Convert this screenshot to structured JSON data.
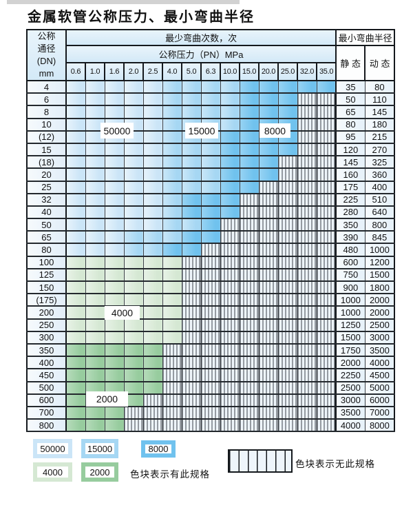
{
  "title": "金属软管公称压力、最小弯曲半径",
  "colors": {
    "c1": "#cbe5f7",
    "c2": "#a6d7f3",
    "c3": "#70c2ee",
    "c4": "#d5e8d3",
    "c5": "#97cc9e",
    "hatch_bg": "#eef5fb",
    "grid": "#3b4046"
  },
  "table": {
    "corner": [
      "公称",
      "通径",
      "(DN)",
      "mm"
    ],
    "cycles_header": "最少弯曲次数，次",
    "pressure_header": "公称压力（PN）MPa",
    "radius_header": "最小弯曲半径",
    "static_label": "静 态",
    "dynamic_label": "动 态"
  },
  "chart_data": {
    "type": "table",
    "title": "金属软管公称压力、最小弯曲半径",
    "columns_unit": "公称压力（PN）MPa",
    "columns": [
      "0.6",
      "1.0",
      "1.6",
      "2.0",
      "2.5",
      "4.0",
      "5.0",
      "6.3",
      "10.0",
      "15.0",
      "20.0",
      "25.0",
      "32.0",
      "35.0"
    ],
    "zone_key": {
      "0": "无此规格（斜线网格）",
      "1": "最少弯曲次数 50000",
      "2": "最少弯曲次数 15000",
      "3": "最少弯曲次数 8000",
      "4": "最少弯曲次数 4000",
      "5": "最少弯曲次数 2000"
    },
    "rows": [
      {
        "dn": "4",
        "zones": [
          1,
          1,
          1,
          1,
          1,
          2,
          2,
          2,
          2,
          3,
          3,
          3,
          3,
          3
        ],
        "static": "35",
        "dynamic": "80"
      },
      {
        "dn": "6",
        "zones": [
          1,
          1,
          1,
          1,
          1,
          2,
          2,
          2,
          2,
          3,
          3,
          3,
          0,
          0
        ],
        "static": "50",
        "dynamic": "110"
      },
      {
        "dn": "8",
        "zones": [
          1,
          1,
          1,
          1,
          1,
          2,
          2,
          2,
          2,
          3,
          3,
          3,
          0,
          0
        ],
        "static": "65",
        "dynamic": "145"
      },
      {
        "dn": "10",
        "zones": [
          1,
          1,
          1,
          1,
          1,
          2,
          2,
          2,
          2,
          3,
          3,
          3,
          0,
          0
        ],
        "static": "80",
        "dynamic": "180"
      },
      {
        "dn": "(12)",
        "zones": [
          1,
          1,
          1,
          1,
          1,
          2,
          2,
          2,
          3,
          3,
          3,
          3,
          0,
          0
        ],
        "static": "95",
        "dynamic": "215"
      },
      {
        "dn": "15",
        "zones": [
          1,
          1,
          1,
          1,
          1,
          2,
          2,
          2,
          3,
          3,
          3,
          3,
          0,
          0
        ],
        "static": "120",
        "dynamic": "270"
      },
      {
        "dn": "(18)",
        "zones": [
          1,
          1,
          1,
          1,
          1,
          2,
          2,
          2,
          3,
          3,
          3,
          0,
          0,
          0
        ],
        "static": "145",
        "dynamic": "325"
      },
      {
        "dn": "20",
        "zones": [
          1,
          1,
          1,
          1,
          1,
          2,
          2,
          2,
          3,
          3,
          3,
          0,
          0,
          0
        ],
        "static": "160",
        "dynamic": "360"
      },
      {
        "dn": "25",
        "zones": [
          1,
          1,
          1,
          1,
          1,
          2,
          2,
          2,
          3,
          3,
          0,
          0,
          0,
          0
        ],
        "static": "175",
        "dynamic": "400"
      },
      {
        "dn": "32",
        "zones": [
          1,
          1,
          1,
          1,
          1,
          2,
          3,
          3,
          3,
          0,
          0,
          0,
          0,
          0
        ],
        "static": "225",
        "dynamic": "510"
      },
      {
        "dn": "40",
        "zones": [
          1,
          1,
          1,
          1,
          1,
          2,
          3,
          3,
          3,
          0,
          0,
          0,
          0,
          0
        ],
        "static": "280",
        "dynamic": "640"
      },
      {
        "dn": "50",
        "zones": [
          1,
          1,
          1,
          1,
          1,
          2,
          2,
          3,
          0,
          0,
          0,
          0,
          0,
          0
        ],
        "static": "350",
        "dynamic": "800"
      },
      {
        "dn": "65",
        "zones": [
          1,
          1,
          1,
          2,
          2,
          2,
          3,
          3,
          0,
          0,
          0,
          0,
          0,
          0
        ],
        "static": "390",
        "dynamic": "845"
      },
      {
        "dn": "80",
        "zones": [
          1,
          1,
          1,
          2,
          2,
          3,
          3,
          0,
          0,
          0,
          0,
          0,
          0,
          0
        ],
        "static": "480",
        "dynamic": "1000"
      },
      {
        "dn": "100",
        "zones": [
          4,
          4,
          4,
          4,
          4,
          4,
          0,
          0,
          0,
          0,
          0,
          0,
          0,
          0
        ],
        "static": "600",
        "dynamic": "1200"
      },
      {
        "dn": "125",
        "zones": [
          4,
          4,
          4,
          4,
          4,
          4,
          0,
          0,
          0,
          0,
          0,
          0,
          0,
          0
        ],
        "static": "750",
        "dynamic": "1500"
      },
      {
        "dn": "150",
        "zones": [
          4,
          4,
          4,
          4,
          4,
          4,
          0,
          0,
          0,
          0,
          0,
          0,
          0,
          0
        ],
        "static": "900",
        "dynamic": "1800"
      },
      {
        "dn": "(175)",
        "zones": [
          4,
          4,
          4,
          4,
          4,
          4,
          0,
          0,
          0,
          0,
          0,
          0,
          0,
          0
        ],
        "static": "1000",
        "dynamic": "2000"
      },
      {
        "dn": "200",
        "zones": [
          4,
          4,
          4,
          4,
          4,
          4,
          0,
          0,
          0,
          0,
          0,
          0,
          0,
          0
        ],
        "static": "1000",
        "dynamic": "2000"
      },
      {
        "dn": "250",
        "zones": [
          4,
          4,
          4,
          4,
          4,
          4,
          0,
          0,
          0,
          0,
          0,
          0,
          0,
          0
        ],
        "static": "1250",
        "dynamic": "2500"
      },
      {
        "dn": "300",
        "zones": [
          4,
          4,
          4,
          4,
          4,
          4,
          0,
          0,
          0,
          0,
          0,
          0,
          0,
          0
        ],
        "static": "1500",
        "dynamic": "3000"
      },
      {
        "dn": "350",
        "zones": [
          5,
          5,
          5,
          5,
          5,
          0,
          0,
          0,
          0,
          0,
          0,
          0,
          0,
          0
        ],
        "static": "1750",
        "dynamic": "3500"
      },
      {
        "dn": "400",
        "zones": [
          5,
          5,
          5,
          5,
          5,
          0,
          0,
          0,
          0,
          0,
          0,
          0,
          0,
          0
        ],
        "static": "2000",
        "dynamic": "4000"
      },
      {
        "dn": "450",
        "zones": [
          5,
          5,
          5,
          5,
          5,
          0,
          0,
          0,
          0,
          0,
          0,
          0,
          0,
          0
        ],
        "static": "2250",
        "dynamic": "4500"
      },
      {
        "dn": "500",
        "zones": [
          5,
          5,
          5,
          5,
          5,
          0,
          0,
          0,
          0,
          0,
          0,
          0,
          0,
          0
        ],
        "static": "2500",
        "dynamic": "5000"
      },
      {
        "dn": "600",
        "zones": [
          5,
          5,
          5,
          5,
          0,
          0,
          0,
          0,
          0,
          0,
          0,
          0,
          0,
          0
        ],
        "static": "3000",
        "dynamic": "6000"
      },
      {
        "dn": "700",
        "zones": [
          5,
          5,
          5,
          0,
          0,
          0,
          0,
          0,
          0,
          0,
          0,
          0,
          0,
          0
        ],
        "static": "3500",
        "dynamic": "7000"
      },
      {
        "dn": "800",
        "zones": [
          5,
          5,
          5,
          0,
          0,
          0,
          0,
          0,
          0,
          0,
          0,
          0,
          0,
          0
        ],
        "static": "4000",
        "dynamic": "8000"
      }
    ]
  },
  "overlays": [
    {
      "text": "50000"
    },
    {
      "text": "15000"
    },
    {
      "text": "8000"
    },
    {
      "text": "4000"
    },
    {
      "text": "2000"
    }
  ],
  "legend": {
    "swatches": [
      {
        "label": "50000",
        "color": "#cbe5f7"
      },
      {
        "label": "15000",
        "color": "#a6d7f3"
      },
      {
        "label": "8000",
        "color": "#70c2ee"
      },
      {
        "label": "4000",
        "color": "#d5e8d3"
      },
      {
        "label": "2000",
        "color": "#97cc9e"
      }
    ],
    "has_spec_text": "色块表示有此规格",
    "no_spec_text": "色块表示无此规格"
  }
}
